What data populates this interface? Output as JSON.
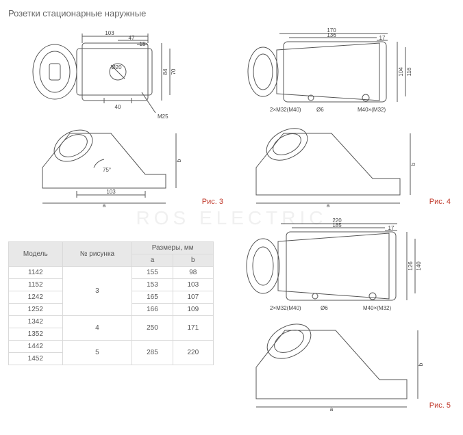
{
  "title": "Розетки стационарные наружные",
  "watermark": "ROS   ELECTRIC",
  "colors": {
    "line": "#555555",
    "dim": "#555555",
    "fig": "#c0392b",
    "bg": "#ffffff",
    "table_border": "#d9d9d9",
    "table_head_bg": "#e8e8e8"
  },
  "figures": {
    "fig3": {
      "label": "Рис. 3",
      "top_dims": {
        "w": "103",
        "seg_right": "47",
        "seg_small": "15"
      },
      "right_dims": {
        "h1": "84",
        "h2": "70"
      },
      "callouts": {
        "bottom_w": "40",
        "thread": "M25",
        "diam": "Ø20"
      },
      "side": {
        "angle": "75°",
        "base": "103",
        "axis_a": "a",
        "axis_b": "b"
      }
    },
    "fig4": {
      "label": "Рис. 4",
      "top_dims": {
        "outer": "170",
        "inner": "136",
        "edge": "17"
      },
      "right_dims": {
        "outer": "116",
        "inner": "104"
      },
      "callouts": {
        "left_thread": "2×M32(M40)",
        "hole": "Ø6",
        "right_thread": "M40×(M32)"
      },
      "side": {
        "axis_a": "a",
        "axis_b": "b"
      }
    },
    "fig5": {
      "label": "Рис. 5",
      "top_dims": {
        "outer": "220",
        "inner": "185",
        "edge": "17"
      },
      "right_dims": {
        "outer": "140",
        "inner": "126"
      },
      "callouts": {
        "left_thread": "2×M32(M40)",
        "hole": "Ø6",
        "right_thread": "M40×(M32)"
      },
      "side": {
        "axis_a": "a",
        "axis_b": "b"
      }
    }
  },
  "table": {
    "head": {
      "model": "Модель",
      "figno": "№ рисунка",
      "dims": "Размеры, мм",
      "a": "a",
      "b": "b"
    },
    "groups": [
      {
        "figno": "3",
        "rows": [
          {
            "model": "1142",
            "a": "155",
            "b": "98"
          },
          {
            "model": "1152",
            "a": "153",
            "b": "103"
          },
          {
            "model": "1242",
            "a": "165",
            "b": "107"
          },
          {
            "model": "1252",
            "a": "166",
            "b": "109"
          }
        ]
      },
      {
        "figno": "4",
        "rows": [
          {
            "model": "1342",
            "a": "250",
            "b": "171"
          },
          {
            "model": "1352",
            "a": "",
            "b": ""
          }
        ]
      },
      {
        "figno": "5",
        "rows": [
          {
            "model": "1442",
            "a": "285",
            "b": "220"
          },
          {
            "model": "1452",
            "a": "",
            "b": ""
          }
        ]
      }
    ]
  }
}
